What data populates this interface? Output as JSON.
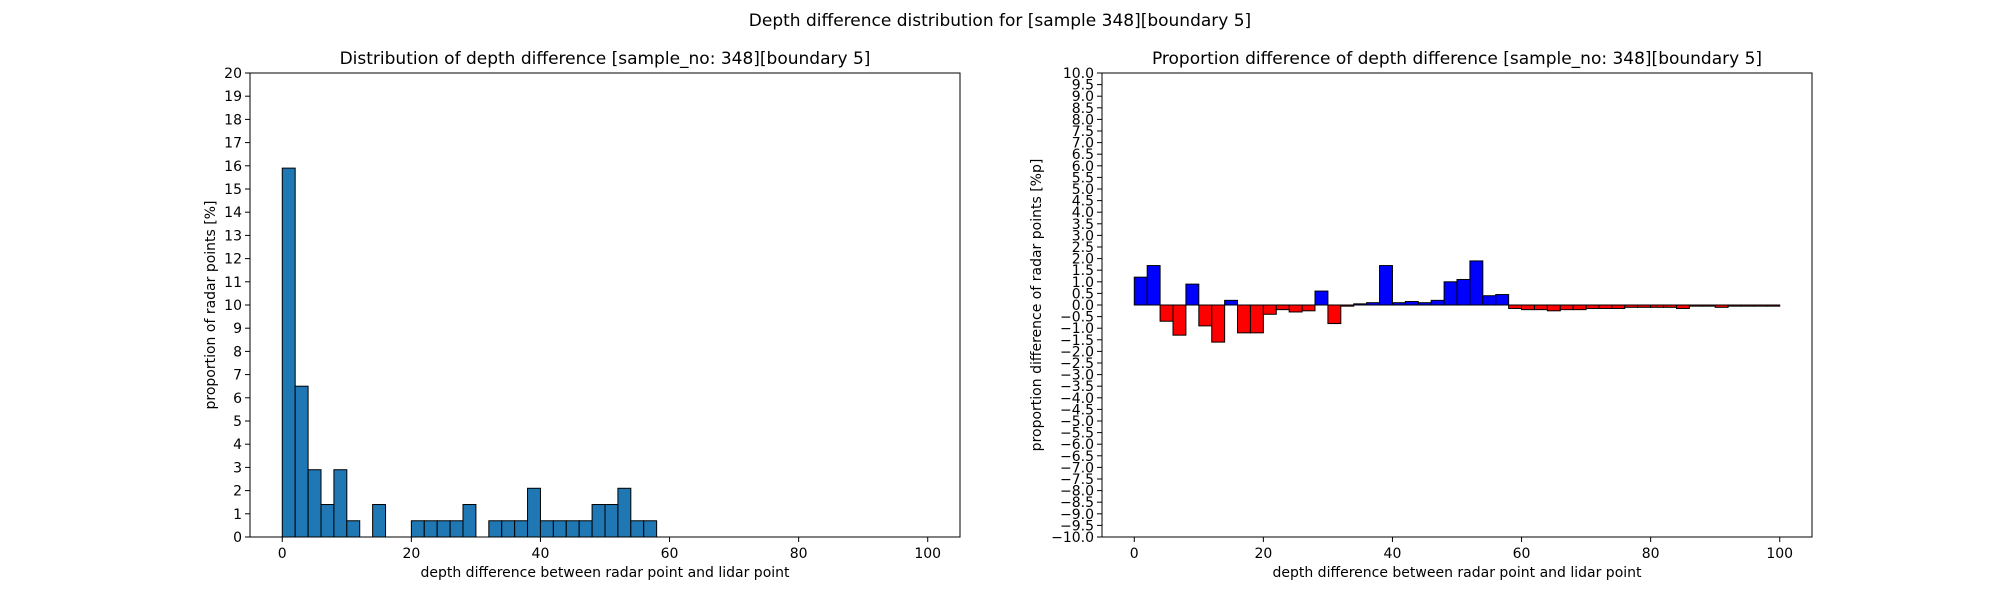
{
  "figure": {
    "suptitle": "Depth difference distribution for [sample 348][boundary 5]"
  },
  "chart_data": [
    {
      "type": "bar",
      "title": "Distribution of depth difference [sample_no: 348][boundary 5]",
      "xlabel": "depth difference between radar point and lidar point",
      "ylabel": "proportion of radar points [%]",
      "xlim": [
        -5,
        105
      ],
      "ylim": [
        0,
        20
      ],
      "xticks": [
        0,
        20,
        40,
        60,
        80,
        100
      ],
      "yticks": [
        0,
        1,
        2,
        3,
        4,
        5,
        6,
        7,
        8,
        9,
        10,
        11,
        12,
        13,
        14,
        15,
        16,
        17,
        18,
        19,
        20
      ],
      "bin_width": 2,
      "bar_color": "#1f77b4",
      "x": [
        0,
        2,
        4,
        6,
        8,
        10,
        12,
        14,
        16,
        18,
        20,
        22,
        24,
        26,
        28,
        30,
        32,
        34,
        36,
        38,
        40,
        42,
        44,
        46,
        48,
        50,
        52,
        54,
        56,
        58
      ],
      "values": [
        15.9,
        6.5,
        2.9,
        1.4,
        2.9,
        0.7,
        0,
        1.4,
        0,
        0,
        0.7,
        0.7,
        0.7,
        0.7,
        1.4,
        0,
        0.7,
        0.7,
        0.7,
        2.1,
        0.7,
        0.7,
        0.7,
        0.7,
        1.4,
        1.4,
        2.1,
        0.7,
        0.7,
        0
      ],
      "grid": false,
      "legend": false
    },
    {
      "type": "bar",
      "title": "Proportion difference of depth difference [sample_no: 348][boundary 5]",
      "xlabel": "depth difference between radar point and lidar point",
      "ylabel": "proportion difference of radar points [%p]",
      "xlim": [
        -5,
        105
      ],
      "ylim": [
        -10,
        10
      ],
      "xticks": [
        0,
        20,
        40,
        60,
        80,
        100
      ],
      "yticks": [
        -10.0,
        -9.5,
        -9.0,
        -8.5,
        -8.0,
        -7.5,
        -7.0,
        -6.5,
        -6.0,
        -5.5,
        -5.0,
        -4.5,
        -4.0,
        -3.5,
        -3.0,
        -2.5,
        -2.0,
        -1.5,
        -1.0,
        -0.5,
        0.0,
        0.5,
        1.0,
        1.5,
        2.0,
        2.5,
        3.0,
        3.5,
        4.0,
        4.5,
        5.0,
        5.5,
        6.0,
        6.5,
        7.0,
        7.5,
        8.0,
        8.5,
        9.0,
        9.5,
        10.0
      ],
      "bin_width": 2,
      "positive_color": "#0000ff",
      "negative_color": "#ff0000",
      "x": [
        0,
        2,
        4,
        6,
        8,
        10,
        12,
        14,
        16,
        18,
        20,
        22,
        24,
        26,
        28,
        30,
        32,
        34,
        36,
        38,
        40,
        42,
        44,
        46,
        48,
        50,
        52,
        54,
        56,
        58,
        60,
        62,
        64,
        66,
        68,
        70,
        72,
        74,
        76,
        78,
        80,
        82,
        84,
        86,
        88,
        90,
        92,
        94,
        96,
        98
      ],
      "values": [
        1.2,
        1.7,
        -0.7,
        -1.3,
        0.9,
        -0.9,
        -1.6,
        0.2,
        -1.2,
        -1.2,
        -0.4,
        -0.2,
        -0.3,
        -0.25,
        0.6,
        -0.8,
        -0.05,
        0.05,
        0.1,
        1.7,
        0.1,
        0.15,
        0.1,
        0.2,
        1.0,
        1.1,
        1.9,
        0.4,
        0.45,
        -0.15,
        -0.2,
        -0.2,
        -0.25,
        -0.2,
        -0.2,
        -0.15,
        -0.15,
        -0.15,
        -0.1,
        -0.1,
        -0.1,
        -0.1,
        -0.15,
        -0.05,
        -0.05,
        -0.1,
        -0.05,
        -0.05,
        -0.05,
        -0.05
      ],
      "grid": false,
      "legend": false
    }
  ]
}
